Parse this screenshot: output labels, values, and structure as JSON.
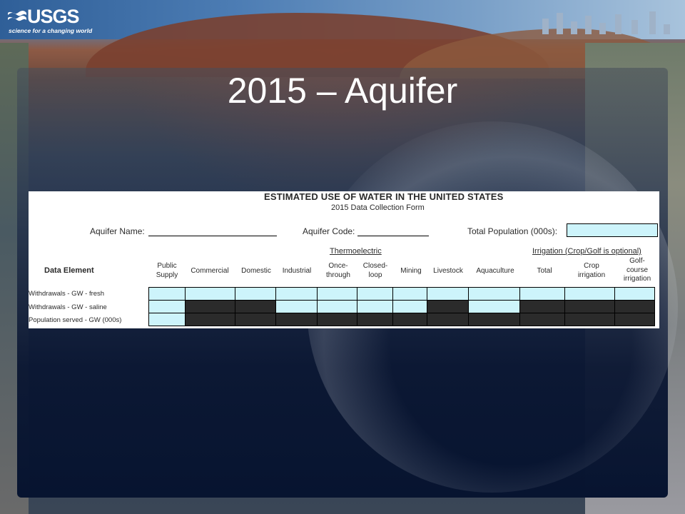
{
  "logo": {
    "name": "USGS",
    "tagline": "science for a changing world"
  },
  "slide": {
    "title": "2015 – Aquifer"
  },
  "form": {
    "title": "ESTIMATED USE OF WATER IN THE UNITED STATES",
    "subtitle": "2015 Data Collection Form",
    "fields": {
      "aquifer_name_label": "Aquifer Name:",
      "aquifer_code_label": "Aquifer Code:",
      "total_population_label": "Total Population (000s):"
    },
    "group_headers": {
      "thermoelectric": "Thermoelectric",
      "irrigation": "Irrigation (Crop/Golf is optional)"
    },
    "data_element_label": "Data Element",
    "columns": [
      {
        "key": "public_supply",
        "label": "Public Supply"
      },
      {
        "key": "commercial",
        "label": "Commercial"
      },
      {
        "key": "domestic",
        "label": "Domestic"
      },
      {
        "key": "industrial",
        "label": "Industrial"
      },
      {
        "key": "once_through",
        "label": "Once-through"
      },
      {
        "key": "closed_loop",
        "label": "Closed-loop"
      },
      {
        "key": "mining",
        "label": "Mining"
      },
      {
        "key": "livestock",
        "label": "Livestock"
      },
      {
        "key": "aquaculture",
        "label": "Aquaculture"
      },
      {
        "key": "irr_total",
        "label": "Total"
      },
      {
        "key": "crop_irrigation",
        "label": "Crop irrigation"
      },
      {
        "key": "golf_irrigation",
        "label": "Golf-course irrigation"
      }
    ],
    "rows": [
      {
        "label": "Withdrawals - GW - fresh",
        "cells": [
          "input",
          "input",
          "input",
          "input",
          "input",
          "input",
          "input",
          "input",
          "input",
          "input",
          "input",
          "input"
        ]
      },
      {
        "label": "Withdrawals - GW - saline",
        "cells": [
          "input",
          "na",
          "na",
          "input",
          "input",
          "input",
          "input",
          "na",
          "input",
          "na",
          "na",
          "na"
        ]
      },
      {
        "label": "Population served - GW  (000s)",
        "cells": [
          "input",
          "na",
          "na",
          "na",
          "na",
          "na",
          "na",
          "na",
          "na",
          "na",
          "na",
          "na"
        ]
      }
    ]
  },
  "colors": {
    "input_cell": "#cdf4fb",
    "na_cell": "#2b2b2b"
  }
}
